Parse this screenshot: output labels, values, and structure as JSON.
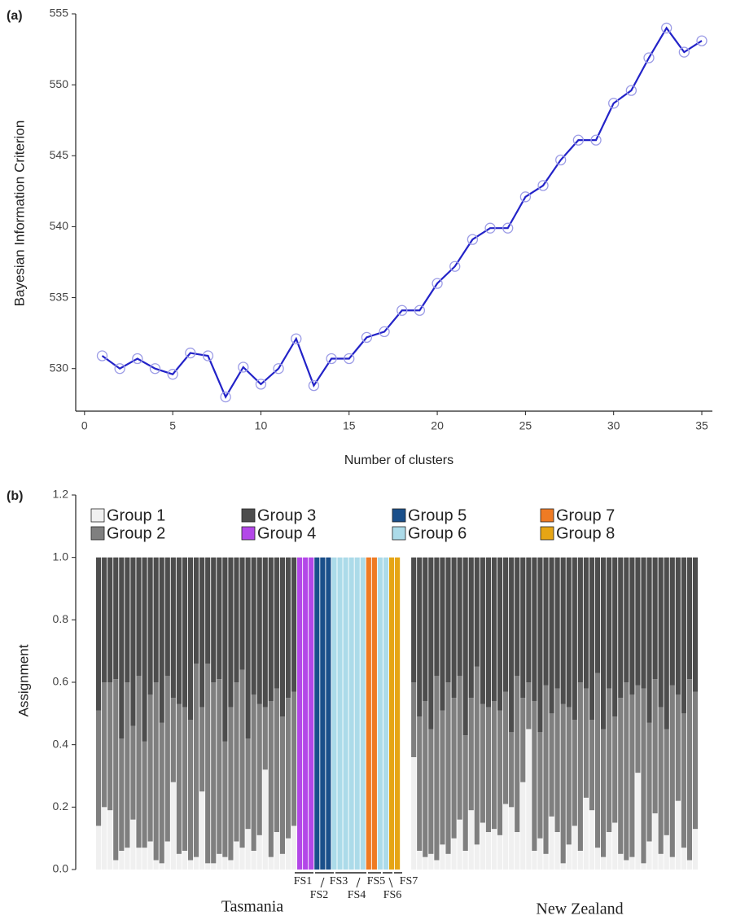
{
  "chart_data": [
    {
      "type": "line",
      "panel_label": "(a)",
      "x_label": "Number of clusters",
      "y_label": "Bayesian Information Criterion",
      "x": [
        1,
        2,
        3,
        4,
        5,
        6,
        7,
        8,
        9,
        10,
        11,
        12,
        13,
        14,
        15,
        16,
        17,
        18,
        19,
        20,
        21,
        22,
        23,
        24,
        25,
        26,
        27,
        28,
        29,
        30,
        31,
        32,
        33,
        34,
        35
      ],
      "values": [
        530.9,
        530.0,
        530.7,
        530.0,
        529.6,
        531.1,
        530.9,
        528.0,
        530.1,
        528.9,
        530.0,
        532.1,
        528.8,
        530.7,
        530.7,
        532.2,
        532.6,
        534.1,
        534.1,
        536.0,
        537.2,
        539.1,
        539.9,
        539.9,
        542.1,
        542.9,
        544.7,
        546.1,
        546.1,
        548.7,
        549.6,
        551.9,
        554.0,
        552.3,
        553.1
      ],
      "color": "#2323c8",
      "marker_color": "#9c9ce6",
      "xlim": [
        -0.5,
        35.6
      ],
      "xticks": [
        0,
        5,
        10,
        15,
        20,
        25,
        30,
        35
      ],
      "ylim": [
        527,
        555
      ],
      "yticks": [
        530,
        535,
        540,
        545,
        550,
        555
      ]
    },
    {
      "type": "stacked_bar",
      "panel_label": "(b)",
      "y_label": "Assignment",
      "categories": [
        null,
        null,
        null,
        null,
        null,
        null,
        null,
        null,
        null,
        null,
        null,
        null,
        null,
        null,
        null,
        null,
        null,
        null,
        null,
        null,
        null,
        null,
        null,
        null,
        null,
        null,
        null,
        null,
        null,
        null,
        null,
        null,
        null,
        null,
        null,
        null,
        null,
        null,
        null,
        null,
        null,
        null,
        null,
        null,
        null,
        null,
        null,
        null,
        null,
        null,
        null,
        null,
        null,
        null,
        null,
        null,
        null,
        null,
        null,
        null,
        null,
        null,
        null,
        null,
        null,
        null,
        null,
        null,
        null,
        null,
        null,
        null,
        null,
        null,
        null,
        null,
        null,
        null,
        null,
        null,
        null,
        null,
        null,
        null,
        null,
        null,
        null,
        null,
        null,
        null,
        null,
        null,
        null,
        null,
        null,
        null,
        null,
        null,
        null,
        null,
        null,
        null,
        null
      ],
      "series": [
        {
          "name": "Group 1",
          "color": "#f0f0f0",
          "values": [
            0.14,
            0.2,
            0.19,
            0.03,
            0.06,
            0.07,
            0.16,
            0.07,
            0.07,
            0.09,
            0.03,
            0.02,
            0.09,
            0.28,
            0.05,
            0.06,
            0.03,
            0.04,
            0.25,
            0.02,
            0.02,
            0.05,
            0.04,
            0.03,
            0.09,
            0.07,
            0.13,
            0.06,
            0.11,
            0.32,
            0.04,
            0.12,
            0.05,
            0.1,
            0.14,
            0,
            0,
            0,
            0,
            0,
            0,
            0,
            0,
            0,
            0,
            0,
            0,
            0,
            0,
            0,
            0,
            0,
            0,
            0.36,
            0.06,
            0.04,
            0.05,
            0.03,
            0.08,
            0.05,
            0.1,
            0.16,
            0.06,
            0.19,
            0.08,
            0.15,
            0.12,
            0.13,
            0.11,
            0.21,
            0.2,
            0.12,
            0.28,
            0.45,
            0.06,
            0.1,
            0.05,
            0.17,
            0.12,
            0.02,
            0.08,
            0.14,
            0.06,
            0.23,
            0.19,
            0.07,
            0.04,
            0.12,
            0.15,
            0.05,
            0.03,
            0.04,
            0.31,
            0.02,
            0.09,
            0.18,
            0.05,
            0.11,
            0.04,
            0.22,
            0.07,
            0.03,
            0.13
          ]
        },
        {
          "name": "Group 2",
          "color": "#7f7f7f",
          "values": [
            0.37,
            0.4,
            0.41,
            0.58,
            0.36,
            0.53,
            0.3,
            0.55,
            0.34,
            0.47,
            0.57,
            0.45,
            0.53,
            0.27,
            0.48,
            0.46,
            0.45,
            0.62,
            0.27,
            0.64,
            0.58,
            0.56,
            0.37,
            0.49,
            0.51,
            0.57,
            0.29,
            0.5,
            0.42,
            0.2,
            0.5,
            0.46,
            0.44,
            0.45,
            0.43,
            0,
            0,
            0,
            0,
            0,
            0,
            0,
            0,
            0,
            0,
            0,
            0,
            0,
            0,
            0,
            0,
            0,
            0,
            0.24,
            0.43,
            0.5,
            0.4,
            0.59,
            0.43,
            0.55,
            0.45,
            0.46,
            0.37,
            0.36,
            0.57,
            0.38,
            0.4,
            0.41,
            0.4,
            0.36,
            0.24,
            0.5,
            0.27,
            0.15,
            0.48,
            0.34,
            0.54,
            0.33,
            0.46,
            0.51,
            0.44,
            0.34,
            0.54,
            0.35,
            0.29,
            0.56,
            0.41,
            0.46,
            0.34,
            0.5,
            0.57,
            0.52,
            0.28,
            0.56,
            0.38,
            0.43,
            0.47,
            0.34,
            0.55,
            0.34,
            0.43,
            0.58,
            0.44
          ]
        },
        {
          "name": "Group 3",
          "color": "#4d4d4d",
          "values": [
            0.49,
            0.4,
            0.4,
            0.39,
            0.58,
            0.4,
            0.54,
            0.38,
            0.59,
            0.44,
            0.4,
            0.53,
            0.38,
            0.45,
            0.47,
            0.48,
            0.52,
            0.34,
            0.48,
            0.34,
            0.4,
            0.39,
            0.59,
            0.48,
            0.4,
            0.36,
            0.58,
            0.44,
            0.47,
            0.48,
            0.46,
            0.42,
            0.51,
            0.45,
            0.43,
            0,
            0,
            0,
            0,
            0,
            0,
            0,
            0,
            0,
            0,
            0,
            0,
            0,
            0,
            0,
            0,
            0,
            0,
            0.4,
            0.51,
            0.46,
            0.55,
            0.38,
            0.49,
            0.4,
            0.45,
            0.38,
            0.57,
            0.45,
            0.35,
            0.47,
            0.48,
            0.46,
            0.49,
            0.43,
            0.56,
            0.38,
            0.45,
            0.4,
            0.46,
            0.56,
            0.41,
            0.5,
            0.42,
            0.47,
            0.48,
            0.52,
            0.4,
            0.42,
            0.52,
            0.37,
            0.55,
            0.42,
            0.51,
            0.45,
            0.4,
            0.44,
            0.41,
            0.42,
            0.53,
            0.39,
            0.48,
            0.55,
            0.41,
            0.44,
            0.5,
            0.39,
            0.43
          ]
        },
        {
          "name": "Group 4",
          "color": "#b347e8",
          "values": [
            0,
            0,
            0,
            0,
            0,
            0,
            0,
            0,
            0,
            0,
            0,
            0,
            0,
            0,
            0,
            0,
            0,
            0,
            0,
            0,
            0,
            0,
            0,
            0,
            0,
            0,
            0,
            0,
            0,
            0,
            0,
            0,
            0,
            0,
            0,
            1,
            1,
            1,
            0,
            0,
            0,
            0,
            0,
            0,
            0,
            0,
            0,
            0,
            0,
            0,
            0,
            0,
            0,
            0,
            0,
            0,
            0,
            0,
            0,
            0,
            0,
            0,
            0,
            0,
            0,
            0,
            0,
            0,
            0,
            0,
            0,
            0,
            0,
            0,
            0,
            0,
            0,
            0,
            0,
            0,
            0,
            0,
            0,
            0,
            0,
            0,
            0,
            0,
            0,
            0,
            0,
            0,
            0,
            0,
            0,
            0,
            0,
            0,
            0,
            0,
            0,
            0,
            0
          ]
        },
        {
          "name": "Group 5",
          "color": "#1a4f8a",
          "values": [
            0,
            0,
            0,
            0,
            0,
            0,
            0,
            0,
            0,
            0,
            0,
            0,
            0,
            0,
            0,
            0,
            0,
            0,
            0,
            0,
            0,
            0,
            0,
            0,
            0,
            0,
            0,
            0,
            0,
            0,
            0,
            0,
            0,
            0,
            0,
            0,
            0,
            0,
            1,
            1,
            1,
            0,
            0,
            0,
            0,
            0,
            0,
            0,
            0,
            0,
            0,
            0,
            0,
            0,
            0,
            0,
            0,
            0,
            0,
            0,
            0,
            0,
            0,
            0,
            0,
            0,
            0,
            0,
            0,
            0,
            0,
            0,
            0,
            0,
            0,
            0,
            0,
            0,
            0,
            0,
            0,
            0,
            0,
            0,
            0,
            0,
            0,
            0,
            0,
            0,
            0,
            0,
            0,
            0,
            0,
            0,
            0,
            0,
            0,
            0,
            0,
            0,
            0
          ]
        },
        {
          "name": "Group 6",
          "color": "#acdbe9",
          "values": [
            0,
            0,
            0,
            0,
            0,
            0,
            0,
            0,
            0,
            0,
            0,
            0,
            0,
            0,
            0,
            0,
            0,
            0,
            0,
            0,
            0,
            0,
            0,
            0,
            0,
            0,
            0,
            0,
            0,
            0,
            0,
            0,
            0,
            0,
            0,
            0,
            0,
            0,
            0,
            0,
            0,
            1,
            1,
            1,
            1,
            1,
            1,
            0,
            0,
            1,
            1,
            0,
            0,
            0,
            0,
            0,
            0,
            0,
            0,
            0,
            0,
            0,
            0,
            0,
            0,
            0,
            0,
            0,
            0,
            0,
            0,
            0,
            0,
            0,
            0,
            0,
            0,
            0,
            0,
            0,
            0,
            0,
            0,
            0,
            0,
            0,
            0,
            0,
            0,
            0,
            0,
            0,
            0,
            0,
            0,
            0,
            0,
            0,
            0,
            0,
            0,
            0,
            0
          ]
        },
        {
          "name": "Group 7",
          "color": "#ef7b24",
          "values": [
            0,
            0,
            0,
            0,
            0,
            0,
            0,
            0,
            0,
            0,
            0,
            0,
            0,
            0,
            0,
            0,
            0,
            0,
            0,
            0,
            0,
            0,
            0,
            0,
            0,
            0,
            0,
            0,
            0,
            0,
            0,
            0,
            0,
            0,
            0,
            0,
            0,
            0,
            0,
            0,
            0,
            0,
            0,
            0,
            0,
            0,
            0,
            1,
            1,
            0,
            0,
            0,
            0,
            0,
            0,
            0,
            0,
            0,
            0,
            0,
            0,
            0,
            0,
            0,
            0,
            0,
            0,
            0,
            0,
            0,
            0,
            0,
            0,
            0,
            0,
            0,
            0,
            0,
            0,
            0,
            0,
            0,
            0,
            0,
            0,
            0,
            0,
            0,
            0,
            0,
            0,
            0,
            0,
            0,
            0,
            0,
            0,
            0,
            0,
            0,
            0,
            0,
            0
          ]
        },
        {
          "name": "Group 8",
          "color": "#e6a515",
          "values": [
            0,
            0,
            0,
            0,
            0,
            0,
            0,
            0,
            0,
            0,
            0,
            0,
            0,
            0,
            0,
            0,
            0,
            0,
            0,
            0,
            0,
            0,
            0,
            0,
            0,
            0,
            0,
            0,
            0,
            0,
            0,
            0,
            0,
            0,
            0,
            0,
            0,
            0,
            0,
            0,
            0,
            0,
            0,
            0,
            0,
            0,
            0,
            0,
            0,
            0,
            0,
            1,
            1,
            0,
            0,
            0,
            0,
            0,
            0,
            0,
            0,
            0,
            0,
            0,
            0,
            0,
            0,
            0,
            0,
            0,
            0,
            0,
            0,
            0,
            0,
            0,
            0,
            0,
            0,
            0,
            0,
            0,
            0,
            0,
            0,
            0,
            0,
            0,
            0,
            0,
            0,
            0,
            0,
            0,
            0,
            0,
            0,
            0,
            0,
            0,
            0,
            0,
            0
          ]
        }
      ],
      "ylim": [
        0,
        1.2
      ],
      "yticks": [
        {
          "value": 0,
          "label": "0.0"
        },
        {
          "value": 0.2,
          "label": "0.2"
        },
        {
          "value": 0.4,
          "label": "0.4"
        },
        {
          "value": 0.6,
          "label": "0.6"
        },
        {
          "value": 0.8,
          "label": "0.8"
        },
        {
          "value": 1,
          "label": "1.0"
        },
        {
          "value": 1.2,
          "label": "1.2"
        }
      ],
      "annotations": [
        "FS1",
        "FS2",
        "FS3",
        "FS4",
        "FS5",
        "FS6",
        "FS7",
        "Tasmania",
        "New Zealand"
      ]
    }
  ]
}
